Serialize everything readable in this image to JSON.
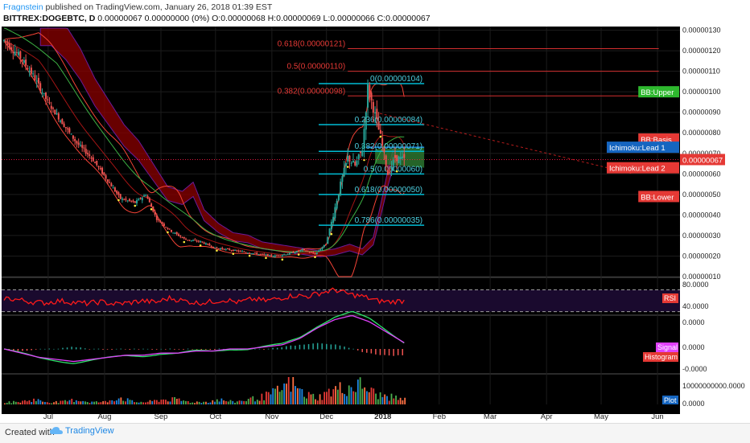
{
  "header": {
    "author": "Fragnstein",
    "published": " published on TradingView.com, January 26, 2018 01:39 EST",
    "symbol": "BITTREX:DOGEBTC, D",
    "ohlc": " 0.00000067 0.00000000 (0%) O:0.00000068 H:0.00000069 L:0.00000066 C:0.00000067"
  },
  "footer": {
    "created": "Created with",
    "brand": "TradingView"
  },
  "colors": {
    "background": "#000000",
    "candle_up": "#26a69a",
    "candle_down": "#ef5350",
    "fib_cyan": "#00bcd4",
    "fib_red": "#d32f2f",
    "bb": "#f44336",
    "cloud_red": "#8b0000",
    "rsi": "#ff1a1a",
    "macd": "#2ee26a",
    "signal": "#e040fb",
    "volume": "#4caf50"
  },
  "chart_data": [
    {
      "type": "candlestick",
      "title": "BITTREX:DOGEBTC, D",
      "y_ticks": [
        "0.00000130",
        "0.00000120",
        "0.00000110",
        "0.00000100",
        "0.00000090",
        "0.00000080",
        "0.00000070",
        "0.00000060",
        "0.00000050",
        "0.00000040",
        "0.00000030",
        "0.00000020",
        "0.00000010"
      ],
      "ylim": [
        1e-07,
        1.31e-06
      ],
      "x_ticks": [
        "Jul",
        "Aug",
        "Sep",
        "Oct",
        "Nov",
        "Dec",
        "2018",
        "Feb",
        "Mar",
        "Apr",
        "May",
        "Jun"
      ],
      "last_price": "0.00000067",
      "close_series": [
        [
          "2017-06-20",
          1.25e-06
        ],
        [
          "2017-06-28",
          1.18e-06
        ],
        [
          "2017-07-06",
          1.08e-06
        ],
        [
          "2017-07-14",
          9.5e-07
        ],
        [
          "2017-07-22",
          8.5e-07
        ],
        [
          "2017-07-30",
          7.5e-07
        ],
        [
          "2017-08-07",
          6.8e-07
        ],
        [
          "2017-08-15",
          5.8e-07
        ],
        [
          "2017-08-23",
          4.8e-07
        ],
        [
          "2017-08-31",
          4.6e-07
        ],
        [
          "2017-09-06",
          5e-07
        ],
        [
          "2017-09-12",
          3.8e-07
        ],
        [
          "2017-09-20",
          3.2e-07
        ],
        [
          "2017-09-28",
          2.8e-07
        ],
        [
          "2017-10-06",
          2.7e-07
        ],
        [
          "2017-10-14",
          2.4e-07
        ],
        [
          "2017-10-22",
          2.3e-07
        ],
        [
          "2017-10-30",
          2.2e-07
        ],
        [
          "2017-11-07",
          2.1e-07
        ],
        [
          "2017-11-15",
          2e-07
        ],
        [
          "2017-11-23",
          2.1e-07
        ],
        [
          "2017-12-01",
          2.3e-07
        ],
        [
          "2017-12-08",
          2.1e-07
        ],
        [
          "2017-12-14",
          2.6e-07
        ],
        [
          "2017-12-18",
          4e-07
        ],
        [
          "2017-12-22",
          5.5e-07
        ],
        [
          "2017-12-26",
          6.8e-07
        ],
        [
          "2017-12-30",
          6.4e-07
        ],
        [
          "2018-01-03",
          7.2e-07
        ],
        [
          "2018-01-06",
          1.02e-06
        ],
        [
          "2018-01-09",
          9.2e-07
        ],
        [
          "2018-01-13",
          7.8e-07
        ],
        [
          "2018-01-17",
          6e-07
        ],
        [
          "2018-01-21",
          6.8e-07
        ],
        [
          "2018-01-26",
          6.7e-07
        ]
      ],
      "fibonacci": [
        {
          "label": "0(0.00000104)",
          "value": 1.04e-06,
          "color": "cyan"
        },
        {
          "label": "0.236(0.00000084)",
          "value": 8.4e-07,
          "color": "cyan"
        },
        {
          "label": "0.382(0.00000071)",
          "value": 7.1e-07,
          "color": "cyan"
        },
        {
          "label": "0.5(0.00000060)",
          "value": 6e-07,
          "color": "cyan"
        },
        {
          "label": "0.618(0.00000050)",
          "value": 5e-07,
          "color": "cyan"
        },
        {
          "label": "0.786(0.00000035)",
          "value": 3.5e-07,
          "color": "cyan"
        },
        {
          "label": "0.618(0.00000121)",
          "value": 1.21e-06,
          "color": "red"
        },
        {
          "label": "0.5(0.00000110)",
          "value": 1.1e-06,
          "color": "red"
        },
        {
          "label": "0.382(0.00000098)",
          "value": 9.8e-07,
          "color": "red"
        }
      ],
      "tags": [
        {
          "label": "BB:Upper",
          "value": 1e-06,
          "bg": "#2eb82e",
          "fg": "#ffffff"
        },
        {
          "label": "BB:Basis",
          "value": 7.7e-07,
          "bg": "#e53935",
          "fg": "#ffffff"
        },
        {
          "label": "Ichimoku:Lead 1",
          "value": 7.3e-07,
          "bg": "#1565c0",
          "fg": "#ffffff"
        },
        {
          "label": "Ichimoku:Lead 2",
          "value": 6.3e-07,
          "bg": "#e53935",
          "fg": "#ffffff"
        },
        {
          "label": "BB:Lower",
          "value": 4.9e-07,
          "bg": "#e53935",
          "fg": "#ffffff"
        }
      ]
    },
    {
      "type": "line",
      "series": [
        {
          "name": "RSI",
          "values": [
            55,
            52,
            48,
            46,
            50,
            47,
            45,
            48,
            44,
            46,
            50,
            47,
            55,
            50,
            46,
            48,
            52,
            47,
            53,
            50,
            55,
            60,
            58,
            65,
            70,
            62,
            58,
            50,
            48,
            50
          ]
        }
      ],
      "y_ticks": [
        "80.0000",
        "40.0000"
      ],
      "ylim": [
        25,
        90
      ]
    },
    {
      "type": "line",
      "series": [
        {
          "name": "Signal",
          "values": [
            0.0,
            -0.02,
            -0.04,
            -0.05,
            -0.06,
            -0.05,
            -0.04,
            -0.03,
            -0.03,
            -0.02,
            -0.02,
            -0.01,
            -0.01,
            0.0,
            0.0,
            0.01,
            0.02,
            0.05,
            0.1,
            0.14,
            0.16,
            0.13,
            0.08,
            0.03
          ]
        },
        {
          "name": "Histogram",
          "values": [
            0.0,
            -0.01,
            0.0,
            0.0,
            0.01,
            0.0,
            0.0,
            0.0,
            0.0,
            0.0,
            0.0,
            0.0,
            0.0,
            0.0,
            0.0,
            0.0,
            0.01,
            0.02,
            0.03,
            0.02,
            0.0,
            -0.02,
            -0.03,
            -0.03
          ]
        }
      ],
      "y_ticks": [
        "0.0000",
        "0.0000",
        "-0.0000"
      ]
    },
    {
      "type": "bar",
      "series": [
        {
          "name": "Plot",
          "values": [
            1,
            1,
            2,
            1,
            1,
            2,
            1,
            1,
            3,
            1,
            1,
            2,
            2,
            1,
            1,
            2,
            1,
            2,
            3,
            5,
            9,
            4,
            3,
            6,
            7,
            8,
            4,
            3,
            2
          ]
        }
      ],
      "y_ticks": [
        "10000000000.0000",
        "0.0000"
      ]
    }
  ]
}
